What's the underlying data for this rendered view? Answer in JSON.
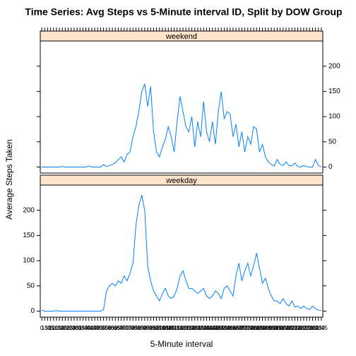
{
  "chart_data": {
    "type": "line",
    "title": "Time Series: Avg Steps vs 5-Minute interval ID, Split by DOW Group",
    "xlabel": "5-Minute interval",
    "ylabel": "Average Steps Taken",
    "categories": [
      "0",
      "15",
      "30",
      "45",
      "100",
      "115",
      "130",
      "145",
      "200",
      "215",
      "230",
      "245",
      "300",
      "315",
      "330",
      "345",
      "400",
      "415",
      "430",
      "445",
      "500",
      "515",
      "530",
      "545",
      "600",
      "615",
      "630",
      "645",
      "700",
      "715",
      "730",
      "745",
      "800",
      "815",
      "830",
      "845",
      "900",
      "915",
      "930",
      "945",
      "1000",
      "1015",
      "1030",
      "1045",
      "1100",
      "1115",
      "1130",
      "1145",
      "1200",
      "1215",
      "1230",
      "1245",
      "1300",
      "1315",
      "1330",
      "1345",
      "1400",
      "1415",
      "1430",
      "1445",
      "1500",
      "1515",
      "1530",
      "1545",
      "1600",
      "1615",
      "1630",
      "1645",
      "1700",
      "1715",
      "1730",
      "1745",
      "1800",
      "1815",
      "1830",
      "1845",
      "1900",
      "1915",
      "1930",
      "1945",
      "2000",
      "2015",
      "2030",
      "2045",
      "2100",
      "2115",
      "2130",
      "2145",
      "2200",
      "2215",
      "2230",
      "2245",
      "2300",
      "2315",
      "2330",
      "2345"
    ],
    "ylim": [
      -12,
      250
    ],
    "yticks": [
      0,
      50,
      100,
      150,
      200
    ],
    "strip_color": "#ffe5cc",
    "series": [
      {
        "name": "weekend",
        "color": "#0080ff",
        "values": [
          0,
          0,
          0,
          0,
          0,
          0,
          0,
          1,
          0,
          0,
          0,
          0,
          0,
          0,
          0,
          0,
          2,
          0,
          0,
          0,
          0,
          5,
          1,
          3,
          5,
          8,
          15,
          20,
          10,
          25,
          30,
          60,
          80,
          110,
          150,
          165,
          120,
          160,
          70,
          30,
          20,
          40,
          55,
          80,
          60,
          30,
          90,
          140,
          110,
          80,
          70,
          100,
          40,
          90,
          60,
          130,
          70,
          50,
          90,
          45,
          110,
          150,
          95,
          110,
          105,
          60,
          85,
          40,
          70,
          30,
          60,
          45,
          80,
          75,
          30,
          45,
          20,
          10,
          5,
          2,
          15,
          5,
          3,
          10,
          3,
          2,
          8,
          1,
          0,
          3,
          1,
          0,
          0,
          15,
          3,
          0
        ]
      },
      {
        "name": "weekday",
        "color": "#0080ff",
        "values": [
          2,
          0,
          0,
          0,
          0,
          1,
          0,
          0,
          0,
          0,
          0,
          0,
          0,
          0,
          0,
          0,
          0,
          0,
          0,
          0,
          0,
          3,
          40,
          50,
          55,
          50,
          60,
          55,
          70,
          60,
          75,
          95,
          170,
          210,
          230,
          200,
          90,
          60,
          40,
          30,
          20,
          35,
          45,
          30,
          25,
          30,
          45,
          70,
          80,
          60,
          45,
          45,
          40,
          35,
          40,
          45,
          30,
          25,
          30,
          40,
          35,
          25,
          45,
          50,
          40,
          30,
          70,
          95,
          60,
          80,
          95,
          70,
          90,
          115,
          85,
          55,
          65,
          45,
          30,
          20,
          20,
          15,
          25,
          15,
          10,
          20,
          8,
          10,
          5,
          10,
          5,
          3,
          10,
          5,
          2,
          1
        ]
      }
    ]
  }
}
